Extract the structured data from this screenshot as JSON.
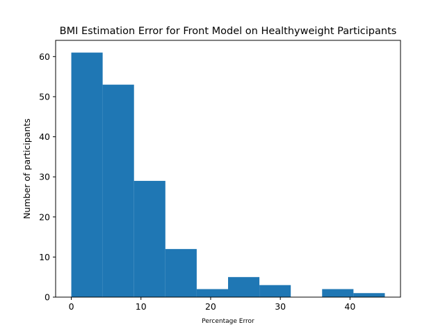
{
  "chart_data": {
    "type": "bar",
    "title": "BMI Estimation Error for Front Model on Healthyweight Participants",
    "xlabel": "Percentage Error",
    "ylabel": "Number of participants",
    "bin_edges": [
      0.0,
      4.5,
      9.0,
      13.5,
      18.0,
      22.5,
      27.0,
      31.5,
      36.0,
      40.5,
      45.0
    ],
    "values": [
      61,
      53,
      29,
      12,
      2,
      5,
      3,
      0,
      2,
      1
    ],
    "xlim": [
      -2.25,
      47.25
    ],
    "ylim": [
      0,
      64.05
    ],
    "xticks": [
      0,
      10,
      20,
      30,
      40
    ],
    "yticks": [
      0,
      10,
      20,
      30,
      40,
      50,
      60
    ],
    "bar_color": "#1f77b4",
    "grid": false,
    "legend": "none"
  }
}
